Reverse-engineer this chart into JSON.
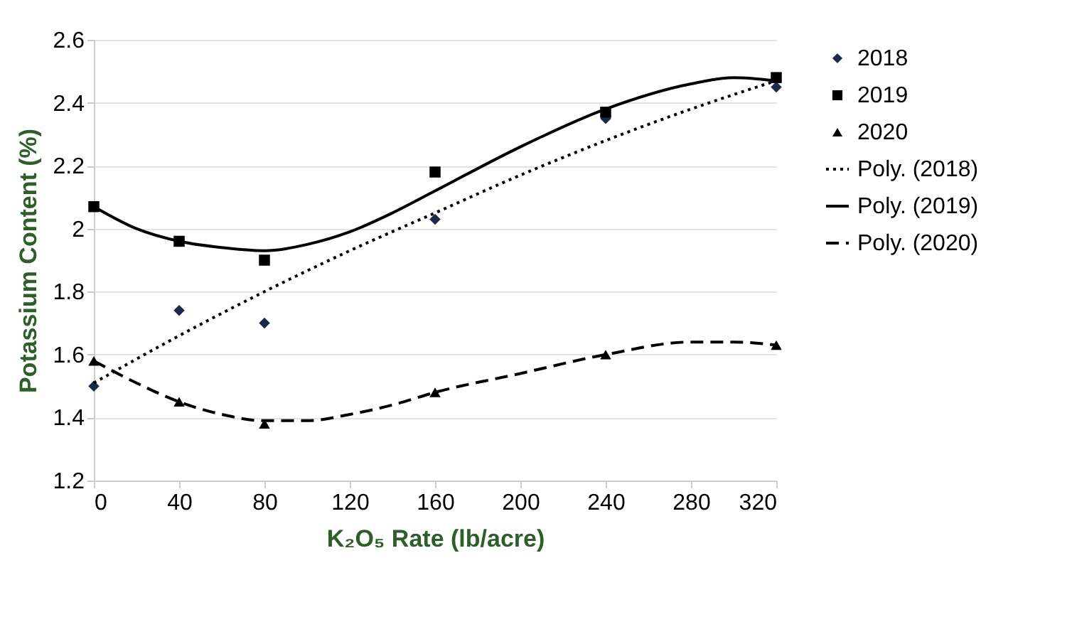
{
  "chart_data": {
    "type": "scatter",
    "xlabel": "K₂O₅ Rate (lb/acre)",
    "ylabel": "Potassium Content (%)",
    "x": [
      0,
      40,
      80,
      160,
      240,
      320
    ],
    "xlim": [
      0,
      320
    ],
    "xticks": [
      0,
      40,
      80,
      120,
      160,
      200,
      240,
      280,
      320
    ],
    "ylim": [
      1.2,
      2.6
    ],
    "yticks": [
      1.2,
      1.4,
      1.6,
      1.8,
      2,
      2.2,
      2.4,
      2.6
    ],
    "grid": "y",
    "legend": "right",
    "series": [
      {
        "name": "2018",
        "marker": "diamond",
        "color": "#1c2a4a",
        "values": [
          1.5,
          1.74,
          1.7,
          2.03,
          2.35,
          2.45
        ]
      },
      {
        "name": "2019",
        "marker": "square",
        "color": "#000000",
        "values": [
          2.07,
          1.96,
          1.9,
          2.18,
          2.37,
          2.48
        ]
      },
      {
        "name": "2020",
        "marker": "triangle",
        "color": "#000000",
        "values": [
          1.58,
          1.45,
          1.38,
          1.48,
          1.6,
          1.63
        ]
      },
      {
        "name": "Poly. (2018)",
        "type": "line",
        "line_style": "dotted",
        "color": "#000000",
        "x": [
          0,
          40,
          80,
          120,
          160,
          200,
          240,
          280,
          320
        ],
        "values": [
          1.51,
          1.66,
          1.8,
          1.93,
          2.05,
          2.17,
          2.28,
          2.38,
          2.47
        ]
      },
      {
        "name": "Poly. (2019)",
        "type": "line",
        "line_style": "solid",
        "color": "#000000",
        "x": [
          0,
          20,
          40,
          60,
          80,
          100,
          120,
          140,
          160,
          200,
          240,
          280,
          300,
          320
        ],
        "values": [
          2.07,
          2.0,
          1.96,
          1.94,
          1.93,
          1.95,
          1.99,
          2.05,
          2.12,
          2.26,
          2.38,
          2.46,
          2.48,
          2.47
        ]
      },
      {
        "name": "Poly. (2020)",
        "type": "line",
        "line_style": "dashed",
        "color": "#000000",
        "x": [
          0,
          20,
          40,
          60,
          80,
          100,
          120,
          140,
          160,
          200,
          240,
          280,
          300,
          320
        ],
        "values": [
          1.58,
          1.51,
          1.45,
          1.41,
          1.39,
          1.39,
          1.41,
          1.44,
          1.48,
          1.54,
          1.6,
          1.64,
          1.64,
          1.63
        ]
      }
    ]
  }
}
